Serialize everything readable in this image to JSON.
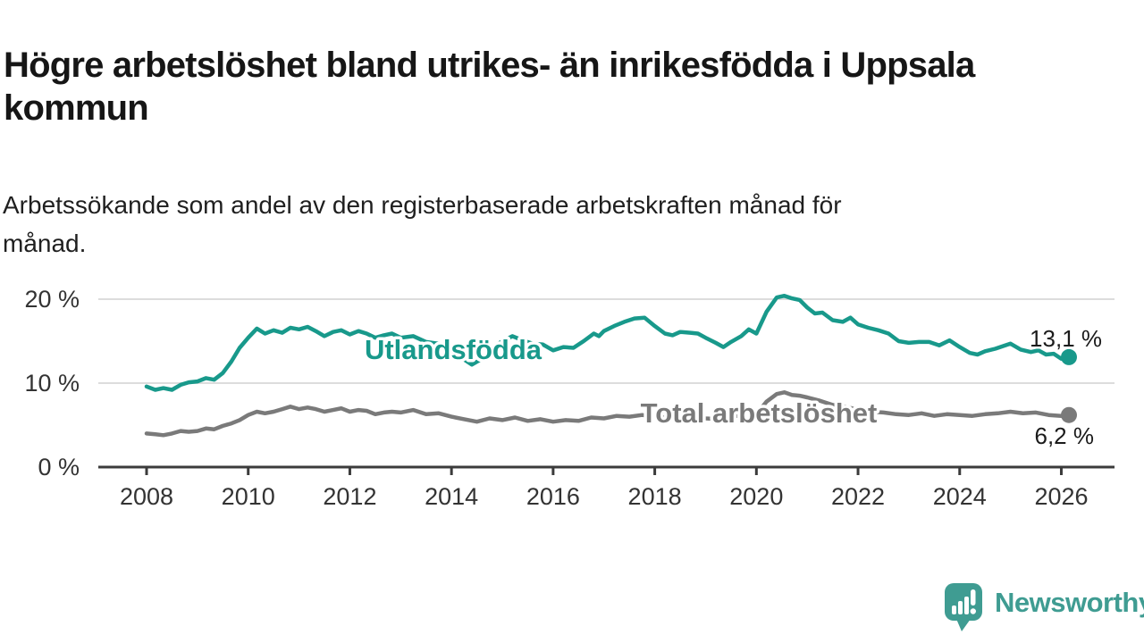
{
  "header": {
    "title_line1": "Högre arbetslöshet bland utrikes- än inrikesfödda i Uppsala",
    "title_line2": "kommun",
    "subtitle_line1": "Arbetssökande som andel av den registerbaserade arbetskraften månad för",
    "subtitle_line2": "månad."
  },
  "footer": {
    "brand": "Newsworthy",
    "brand_color": "#3f9c92",
    "logo_icon": "speech-bubble-bar-chart-exclamation"
  },
  "colors": {
    "series_utlandsfodda": "#18998b",
    "series_total": "#7a7a7a",
    "gridline": "#dcdcdc",
    "axis": "#3b3b3b",
    "text_dark": "#161616",
    "tick_text": "#333333"
  },
  "chart_data": {
    "type": "line",
    "title": "Högre arbetslöshet bland utrikes- än inrikesfödda i Uppsala kommun",
    "subtitle": "Arbetssökande som andel av den registerbaserade arbetskraften månad för månad.",
    "unit": "%",
    "xlim": [
      2007.0,
      2027.1
    ],
    "ylim": [
      0,
      22
    ],
    "grid": "horizontal",
    "legend_position": "inline-labels",
    "x_ticks": [
      2008,
      2010,
      2012,
      2014,
      2016,
      2018,
      2020,
      2022,
      2024,
      2026
    ],
    "y_ticks": [
      {
        "value": 0,
        "label": "0 %"
      },
      {
        "value": 10,
        "label": "10 %"
      },
      {
        "value": 20,
        "label": "20 %"
      }
    ],
    "series": [
      {
        "name": "Utlandsfödda",
        "color": "#18998b",
        "end_label": "13,1 %",
        "end_value": 13.1,
        "points": [
          [
            2008.0,
            9.6
          ],
          [
            2008.17,
            9.2
          ],
          [
            2008.33,
            9.4
          ],
          [
            2008.5,
            9.2
          ],
          [
            2008.67,
            9.8
          ],
          [
            2008.83,
            10.1
          ],
          [
            2009.0,
            10.2
          ],
          [
            2009.17,
            10.6
          ],
          [
            2009.33,
            10.4
          ],
          [
            2009.5,
            11.2
          ],
          [
            2009.67,
            12.6
          ],
          [
            2009.83,
            14.2
          ],
          [
            2010.0,
            15.4
          ],
          [
            2010.17,
            16.5
          ],
          [
            2010.33,
            15.9
          ],
          [
            2010.5,
            16.3
          ],
          [
            2010.67,
            16.0
          ],
          [
            2010.83,
            16.6
          ],
          [
            2011.0,
            16.4
          ],
          [
            2011.17,
            16.7
          ],
          [
            2011.33,
            16.2
          ],
          [
            2011.5,
            15.6
          ],
          [
            2011.67,
            16.1
          ],
          [
            2011.83,
            16.3
          ],
          [
            2012.0,
            15.8
          ],
          [
            2012.17,
            16.2
          ],
          [
            2012.33,
            15.9
          ],
          [
            2012.5,
            15.4
          ],
          [
            2012.67,
            15.7
          ],
          [
            2012.83,
            15.9
          ],
          [
            2013.0,
            15.4
          ],
          [
            2013.25,
            15.6
          ],
          [
            2013.5,
            14.9
          ],
          [
            2013.75,
            14.7
          ],
          [
            2014.0,
            14.1
          ],
          [
            2014.2,
            13.0
          ],
          [
            2014.4,
            12.2
          ],
          [
            2014.6,
            12.9
          ],
          [
            2014.8,
            14.2
          ],
          [
            2015.0,
            15.0
          ],
          [
            2015.2,
            15.6
          ],
          [
            2015.4,
            15.1
          ],
          [
            2015.6,
            14.7
          ],
          [
            2015.8,
            14.6
          ],
          [
            2016.0,
            13.9
          ],
          [
            2016.2,
            14.3
          ],
          [
            2016.4,
            14.2
          ],
          [
            2016.6,
            15.0
          ],
          [
            2016.8,
            15.9
          ],
          [
            2016.9,
            15.6
          ],
          [
            2017.0,
            16.2
          ],
          [
            2017.2,
            16.8
          ],
          [
            2017.4,
            17.3
          ],
          [
            2017.6,
            17.7
          ],
          [
            2017.8,
            17.8
          ],
          [
            2018.0,
            16.8
          ],
          [
            2018.2,
            15.9
          ],
          [
            2018.35,
            15.7
          ],
          [
            2018.5,
            16.1
          ],
          [
            2018.7,
            16.0
          ],
          [
            2018.85,
            15.9
          ],
          [
            2019.0,
            15.4
          ],
          [
            2019.2,
            14.8
          ],
          [
            2019.35,
            14.3
          ],
          [
            2019.5,
            14.9
          ],
          [
            2019.7,
            15.6
          ],
          [
            2019.85,
            16.4
          ],
          [
            2020.0,
            15.9
          ],
          [
            2020.2,
            18.5
          ],
          [
            2020.4,
            20.2
          ],
          [
            2020.55,
            20.4
          ],
          [
            2020.7,
            20.1
          ],
          [
            2020.85,
            19.9
          ],
          [
            2021.0,
            19.0
          ],
          [
            2021.15,
            18.3
          ],
          [
            2021.3,
            18.4
          ],
          [
            2021.5,
            17.5
          ],
          [
            2021.7,
            17.3
          ],
          [
            2021.85,
            17.8
          ],
          [
            2022.0,
            17.0
          ],
          [
            2022.2,
            16.6
          ],
          [
            2022.4,
            16.3
          ],
          [
            2022.6,
            15.9
          ],
          [
            2022.8,
            15.0
          ],
          [
            2023.0,
            14.8
          ],
          [
            2023.2,
            14.9
          ],
          [
            2023.4,
            14.9
          ],
          [
            2023.6,
            14.5
          ],
          [
            2023.8,
            15.1
          ],
          [
            2024.0,
            14.3
          ],
          [
            2024.2,
            13.6
          ],
          [
            2024.35,
            13.4
          ],
          [
            2024.5,
            13.8
          ],
          [
            2024.7,
            14.1
          ],
          [
            2024.85,
            14.4
          ],
          [
            2025.0,
            14.7
          ],
          [
            2025.2,
            14.0
          ],
          [
            2025.4,
            13.7
          ],
          [
            2025.55,
            13.9
          ],
          [
            2025.7,
            13.4
          ],
          [
            2025.85,
            13.5
          ],
          [
            2026.0,
            12.9
          ],
          [
            2026.15,
            13.1
          ]
        ]
      },
      {
        "name": "Total arbetslöshet",
        "color": "#7a7a7a",
        "end_label": "6,2 %",
        "end_value": 6.2,
        "points": [
          [
            2008.0,
            4.0
          ],
          [
            2008.17,
            3.9
          ],
          [
            2008.33,
            3.8
          ],
          [
            2008.5,
            4.0
          ],
          [
            2008.67,
            4.3
          ],
          [
            2008.83,
            4.2
          ],
          [
            2009.0,
            4.3
          ],
          [
            2009.17,
            4.6
          ],
          [
            2009.33,
            4.5
          ],
          [
            2009.5,
            4.9
          ],
          [
            2009.67,
            5.2
          ],
          [
            2009.83,
            5.6
          ],
          [
            2010.0,
            6.2
          ],
          [
            2010.17,
            6.6
          ],
          [
            2010.33,
            6.4
          ],
          [
            2010.5,
            6.6
          ],
          [
            2010.67,
            6.9
          ],
          [
            2010.83,
            7.2
          ],
          [
            2011.0,
            6.9
          ],
          [
            2011.17,
            7.1
          ],
          [
            2011.33,
            6.9
          ],
          [
            2011.5,
            6.6
          ],
          [
            2011.67,
            6.8
          ],
          [
            2011.83,
            7.0
          ],
          [
            2012.0,
            6.6
          ],
          [
            2012.17,
            6.8
          ],
          [
            2012.33,
            6.7
          ],
          [
            2012.5,
            6.3
          ],
          [
            2012.67,
            6.5
          ],
          [
            2012.83,
            6.6
          ],
          [
            2013.0,
            6.5
          ],
          [
            2013.25,
            6.8
          ],
          [
            2013.5,
            6.3
          ],
          [
            2013.75,
            6.4
          ],
          [
            2014.0,
            6.0
          ],
          [
            2014.25,
            5.7
          ],
          [
            2014.5,
            5.4
          ],
          [
            2014.75,
            5.8
          ],
          [
            2015.0,
            5.6
          ],
          [
            2015.25,
            5.9
          ],
          [
            2015.5,
            5.5
          ],
          [
            2015.75,
            5.7
          ],
          [
            2016.0,
            5.4
          ],
          [
            2016.25,
            5.6
          ],
          [
            2016.5,
            5.5
          ],
          [
            2016.75,
            5.9
          ],
          [
            2017.0,
            5.8
          ],
          [
            2017.25,
            6.1
          ],
          [
            2017.5,
            6.0
          ],
          [
            2017.75,
            6.2
          ],
          [
            2018.0,
            6.0
          ],
          [
            2018.25,
            5.9
          ],
          [
            2018.5,
            6.1
          ],
          [
            2018.75,
            6.0
          ],
          [
            2019.0,
            5.8
          ],
          [
            2019.25,
            5.7
          ],
          [
            2019.5,
            6.0
          ],
          [
            2019.75,
            6.2
          ],
          [
            2020.0,
            6.3
          ],
          [
            2020.2,
            7.8
          ],
          [
            2020.4,
            8.7
          ],
          [
            2020.55,
            8.9
          ],
          [
            2020.7,
            8.6
          ],
          [
            2020.85,
            8.5
          ],
          [
            2021.0,
            8.3
          ],
          [
            2021.25,
            7.9
          ],
          [
            2021.5,
            7.4
          ],
          [
            2021.75,
            7.2
          ],
          [
            2022.0,
            6.8
          ],
          [
            2022.25,
            6.6
          ],
          [
            2022.5,
            6.5
          ],
          [
            2022.75,
            6.3
          ],
          [
            2023.0,
            6.2
          ],
          [
            2023.25,
            6.4
          ],
          [
            2023.5,
            6.1
          ],
          [
            2023.75,
            6.3
          ],
          [
            2024.0,
            6.2
          ],
          [
            2024.25,
            6.1
          ],
          [
            2024.5,
            6.3
          ],
          [
            2024.75,
            6.4
          ],
          [
            2025.0,
            6.6
          ],
          [
            2025.25,
            6.4
          ],
          [
            2025.5,
            6.5
          ],
          [
            2025.75,
            6.2
          ],
          [
            2026.0,
            6.1
          ],
          [
            2026.15,
            6.2
          ]
        ]
      }
    ]
  }
}
